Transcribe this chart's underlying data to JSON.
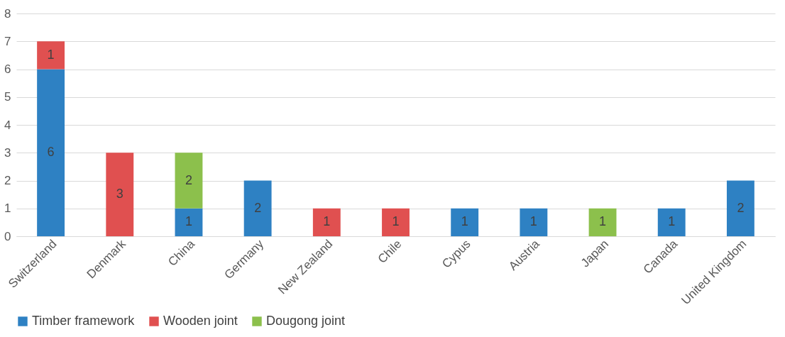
{
  "chart_data": {
    "type": "bar",
    "stacked": true,
    "categories": [
      "Switzerland",
      "Denmark",
      "China",
      "Germany",
      "New Zealand",
      "Chile",
      "Cypus",
      "Austria",
      "Japan",
      "Canada",
      "United Kingdom"
    ],
    "series": [
      {
        "name": "Timber framework",
        "color": "#2e81c3",
        "values": [
          6,
          null,
          1,
          2,
          null,
          null,
          1,
          1,
          null,
          1,
          2
        ]
      },
      {
        "name": "Wooden joint",
        "color": "#e05050",
        "values": [
          1,
          3,
          null,
          null,
          1,
          1,
          null,
          null,
          null,
          null,
          null
        ]
      },
      {
        "name": "Dougong joint",
        "color": "#8cc04c",
        "values": [
          null,
          null,
          2,
          null,
          null,
          null,
          null,
          null,
          1,
          null,
          null
        ]
      }
    ],
    "ylim": [
      0,
      8
    ],
    "yticks": [
      0,
      1,
      2,
      3,
      4,
      5,
      6,
      7,
      8
    ],
    "grid": "y",
    "legend": "bottom",
    "data_labels": true
  }
}
